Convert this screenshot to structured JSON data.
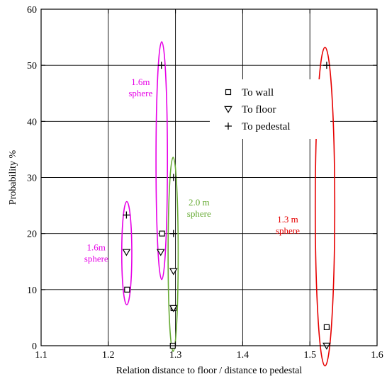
{
  "chart_data": {
    "type": "scatter",
    "xlabel": "Relation distance to floor / distance to pedestal",
    "ylabel": "Probability %",
    "xlim": [
      1.1,
      1.6
    ],
    "ylim": [
      0,
      60
    ],
    "x_ticks": [
      1.1,
      1.2,
      1.3,
      1.4,
      1.5,
      1.6
    ],
    "x_tick_labels": [
      "1.1",
      "1.2",
      "1.3",
      "1.4",
      "1.5",
      "1.6"
    ],
    "y_ticks": [
      0,
      10,
      20,
      30,
      40,
      50,
      60
    ],
    "y_tick_labels": [
      "0",
      "10",
      "20",
      "30",
      "40",
      "50",
      "60"
    ],
    "grid": true,
    "legend_position": "top-center",
    "series": [
      {
        "name": "To wall",
        "marker": "square",
        "points": [
          [
            1.228,
            10
          ],
          [
            1.28,
            20
          ],
          [
            1.297,
            6.7
          ],
          [
            1.296,
            0
          ],
          [
            1.525,
            3.3
          ]
        ]
      },
      {
        "name": "To floor",
        "marker": "triangle-down",
        "points": [
          [
            1.227,
            16.7
          ],
          [
            1.278,
            16.7
          ],
          [
            1.297,
            13.3
          ],
          [
            1.297,
            6.7
          ],
          [
            1.525,
            0
          ]
        ]
      },
      {
        "name": "To pedestal",
        "marker": "plus",
        "points": [
          [
            1.227,
            23.3
          ],
          [
            1.279,
            50
          ],
          [
            1.297,
            30
          ],
          [
            1.297,
            20
          ],
          [
            1.525,
            50
          ]
        ]
      }
    ],
    "ellipses": [
      {
        "cx": 1.2275,
        "cy": 16.5,
        "rx": 0.0075,
        "ry": 9.2,
        "color": "#e600e6",
        "label_lines": [
          "1.6m",
          "sphere"
        ],
        "label_x": 1.182,
        "label_y": 16.5
      },
      {
        "cx": 1.2795,
        "cy": 33,
        "rx": 0.0085,
        "ry": 21.2,
        "color": "#e600e6",
        "label_lines": [
          "1.6m",
          "sphere"
        ],
        "label_x": 1.248,
        "label_y": 46
      },
      {
        "cx": 1.2965,
        "cy": 16.3,
        "rx": 0.0075,
        "ry": 17.3,
        "color": "#66aa33",
        "label_lines": [
          "2.0 m",
          "sphere"
        ],
        "label_x": 1.335,
        "label_y": 24.5
      },
      {
        "cx": 1.5225,
        "cy": 24.8,
        "rx": 0.0145,
        "ry": 28.4,
        "color": "#e60000",
        "label_lines": [
          "1.3 m",
          "sphere"
        ],
        "label_x": 1.467,
        "label_y": 21.5
      }
    ]
  }
}
